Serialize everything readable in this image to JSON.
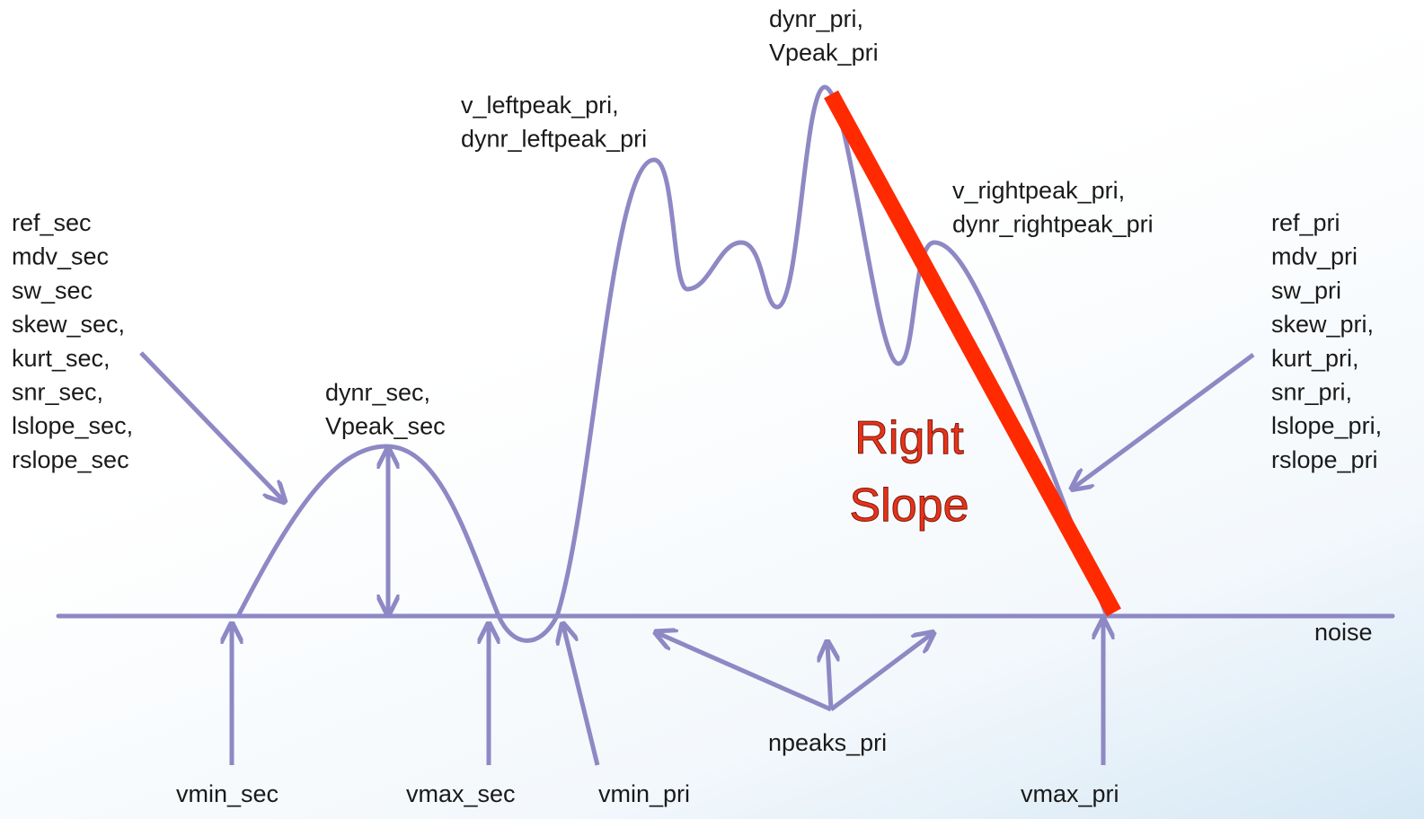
{
  "labels": [
    {
      "lines": [
        "ref_sec",
        "mdv_sec",
        "sw_sec",
        "skew_sec,",
        "kurt_sec,",
        "snr_sec,",
        "lslope_sec,",
        "rslope_sec"
      ]
    },
    {
      "lines": [
        "ref_pri",
        "mdv_pri",
        "sw_pri",
        "skew_pri,",
        "kurt_pri,",
        "snr_pri,",
        "lslope_pri,",
        "rslope_pri"
      ]
    },
    {
      "lines": [
        "dynr_pri,",
        "Vpeak_pri"
      ]
    },
    {
      "lines": [
        "v_leftpeak_pri,",
        "dynr_leftpeak_pri"
      ]
    },
    {
      "lines": [
        "v_rightpeak_pri,",
        "dynr_rightpeak_pri"
      ]
    },
    {
      "lines": [
        "dynr_sec,",
        "Vpeak_sec"
      ]
    },
    {
      "lines": [
        "noise"
      ]
    },
    {
      "lines": [
        "npeaks_pri"
      ]
    },
    {
      "lines": [
        "vmin_sec"
      ]
    },
    {
      "lines": [
        "vmax_sec"
      ]
    },
    {
      "lines": [
        "vmin_pri"
      ]
    },
    {
      "lines": [
        "vmax_pri"
      ]
    }
  ],
  "slope_label": {
    "lines": [
      "Right",
      "Slope"
    ]
  }
}
